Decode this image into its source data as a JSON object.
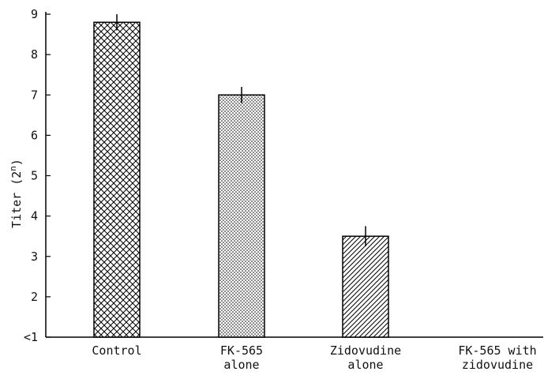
{
  "chart_data": {
    "type": "bar",
    "categories": [
      [
        "Control"
      ],
      [
        "FK-565",
        "alone"
      ],
      [
        "Zidovudine",
        "alone"
      ],
      [
        "FK-565 with",
        "zidovudine"
      ]
    ],
    "values": [
      8.8,
      7.0,
      3.5,
      null
    ],
    "error": [
      0.2,
      0.2,
      0.25,
      null
    ],
    "patterns": [
      "crosshatch",
      "dots",
      "diagonal",
      "none"
    ],
    "ylabel": "Titer (2",
    "ylabel_sup": "n",
    "ylabel_close": ")",
    "yticks": [
      {
        "value": 1,
        "label": "<1"
      },
      {
        "value": 2,
        "label": "2"
      },
      {
        "value": 3,
        "label": "3"
      },
      {
        "value": 4,
        "label": "4"
      },
      {
        "value": 5,
        "label": "5"
      },
      {
        "value": 6,
        "label": "6"
      },
      {
        "value": 7,
        "label": "7"
      },
      {
        "value": 8,
        "label": "8"
      },
      {
        "value": 9,
        "label": "9"
      }
    ],
    "ylim": [
      1,
      9
    ],
    "grid": false,
    "legend": "none"
  }
}
